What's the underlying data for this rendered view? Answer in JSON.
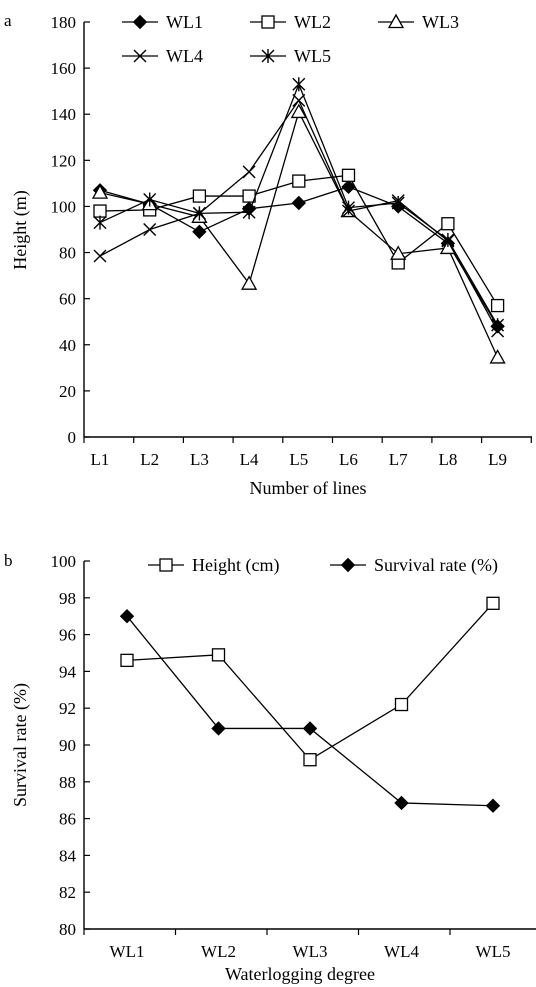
{
  "chart_data": [
    {
      "type": "line",
      "panel_label": "a",
      "categories": [
        "L1",
        "L2",
        "L3",
        "L4",
        "L5",
        "L6",
        "L7",
        "L8",
        "L9"
      ],
      "series": [
        {
          "name": "WL1",
          "marker": "filled-diamond",
          "values": [
            107,
            101,
            89,
            99,
            101.5,
            108.5,
            100,
            84,
            48
          ]
        },
        {
          "name": "WL2",
          "marker": "open-square",
          "values": [
            98,
            98.5,
            104.5,
            104.5,
            111,
            113.5,
            75.5,
            92.5,
            57
          ]
        },
        {
          "name": "WL3",
          "marker": "open-triangle",
          "values": [
            106,
            101,
            95.5,
            66.5,
            141,
            98,
            79.5,
            82,
            34.5
          ]
        },
        {
          "name": "WL4",
          "marker": "x-cross",
          "values": [
            78.5,
            90,
            97,
            115,
            146,
            98,
            102.5,
            85,
            46
          ]
        },
        {
          "name": "WL5",
          "marker": "asterisk",
          "values": [
            93,
            103,
            97,
            97.5,
            153,
            99.5,
            101.5,
            85.5,
            48.5
          ]
        }
      ],
      "xlabel": "Number of lines",
      "ylabel": "Height (m)",
      "ylim": [
        0,
        180
      ],
      "yticks": [
        "0",
        "20",
        "40",
        "60",
        "80",
        "100",
        "120",
        "140",
        "160",
        "180"
      ],
      "grid": false,
      "legend_position": "top"
    },
    {
      "type": "line",
      "panel_label": "b",
      "categories": [
        "WL1",
        "WL2",
        "WL3",
        "WL4",
        "WL5"
      ],
      "series": [
        {
          "name": "Height (cm)",
          "marker": "open-square",
          "values": [
            94.6,
            94.9,
            89.2,
            92.2,
            97.7
          ]
        },
        {
          "name": "Survival rate (%)",
          "marker": "filled-diamond",
          "values": [
            97.0,
            90.9,
            90.9,
            86.85,
            86.7
          ]
        }
      ],
      "xlabel": "Waterlogging degree",
      "ylabel": "Survival rate (%)",
      "ylim": [
        80,
        100
      ],
      "yticks": [
        "80",
        "82",
        "84",
        "86",
        "88",
        "90",
        "92",
        "94",
        "96",
        "98",
        "100"
      ],
      "grid": false,
      "legend_position": "top"
    }
  ]
}
